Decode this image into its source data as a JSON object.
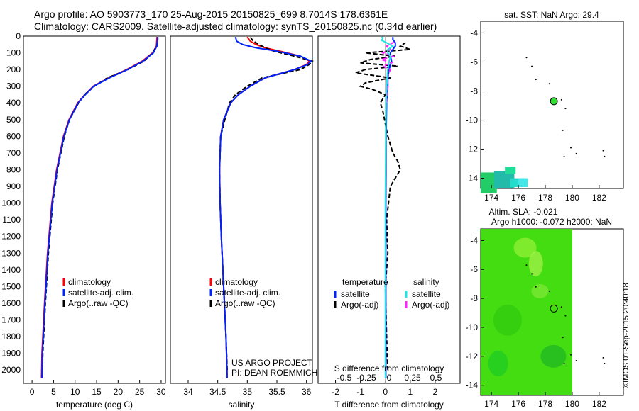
{
  "header": {
    "title_line1": "Argo profile: AO 5903773_170 25-Aug-2015 20150825_699 8.7014S 178.6361E",
    "title_line2": "Climatology: CARS2009. Satellite-adjusted climatology: synTS_20150825.nc (0.34d earlier)"
  },
  "credits": {
    "line1": "US ARGO PROJECT",
    "line2": "PI: DEAN ROEMMICH"
  },
  "stamp": "©IMOS 01-Sep-2015 20:40:18",
  "colors": {
    "climatology": "#ff0000",
    "satellite": "#0022ff",
    "argo": "#000000",
    "sal_sat": "#22e6e6",
    "sal_argo": "#ff22ff",
    "frame": "#000000"
  },
  "chart_data": [
    {
      "type": "line",
      "xlabel": "temperature (deg C)",
      "ylim": [
        2080,
        0
      ],
      "xlim": [
        -2,
        31
      ],
      "yticks": [
        0,
        100,
        200,
        300,
        400,
        500,
        600,
        700,
        800,
        900,
        1000,
        1100,
        1200,
        1300,
        1400,
        1500,
        1600,
        1700,
        1800,
        1900,
        2000
      ],
      "xticks": [
        0,
        5,
        10,
        15,
        20,
        25,
        30
      ],
      "legend": [
        "climatology",
        "satellite-adj. clim.",
        "Argo(..raw -QC)"
      ],
      "legend_position": "lower-center",
      "series": [
        {
          "name": "climatology",
          "depth": [
            2050,
            1900,
            1600,
            1300,
            1000,
            800,
            600,
            500,
            400,
            350,
            300,
            250,
            200,
            150,
            100,
            60,
            20,
            5
          ],
          "values": [
            2.2,
            2.3,
            2.9,
            3.6,
            4.6,
            5.7,
            7.3,
            8.6,
            10.6,
            12.3,
            14.2,
            17.8,
            22.0,
            25.6,
            28.0,
            28.9,
            29.0,
            29.0
          ]
        },
        {
          "name": "satellite-adj. clim.",
          "depth": [
            2050,
            1900,
            1600,
            1300,
            1000,
            800,
            600,
            500,
            400,
            350,
            300,
            250,
            200,
            150,
            100,
            60,
            20,
            5
          ],
          "values": [
            2.3,
            2.4,
            3.0,
            3.7,
            4.7,
            5.8,
            7.4,
            8.7,
            10.7,
            12.4,
            14.3,
            18.0,
            22.2,
            25.8,
            28.2,
            29.0,
            29.2,
            29.2
          ]
        },
        {
          "name": "Argo(..raw -QC)",
          "depth": [
            2000,
            1900,
            1600,
            1300,
            1000,
            800,
            600,
            500,
            400,
            350,
            300,
            250,
            200,
            150,
            100,
            60,
            20,
            5
          ],
          "values": [
            2.4,
            2.5,
            3.1,
            3.8,
            4.8,
            5.9,
            7.5,
            8.7,
            10.8,
            12.2,
            14.5,
            17.5,
            22.3,
            26.0,
            28.0,
            29.0,
            29.2,
            29.2
          ]
        }
      ]
    },
    {
      "type": "line",
      "xlabel": "salinity",
      "ylim": [
        2080,
        0
      ],
      "xlim": [
        33.7,
        36.1
      ],
      "xticks": [
        34,
        34.5,
        35,
        35.5,
        36
      ],
      "legend": [
        "climatology",
        "satellite-adj. clim.",
        "Argo(..raw -QC)"
      ],
      "legend_position": "lower-center",
      "series": [
        {
          "name": "climatology",
          "depth": [
            2050,
            1800,
            1500,
            1200,
            1000,
            800,
            600,
            500,
            400,
            350,
            300,
            250,
            200,
            170,
            150,
            120,
            90,
            70,
            50,
            30,
            5
          ],
          "values": [
            34.66,
            34.64,
            34.6,
            34.56,
            34.54,
            34.53,
            34.55,
            34.6,
            34.72,
            34.85,
            35.05,
            35.3,
            35.8,
            36.0,
            36.05,
            35.9,
            35.55,
            35.3,
            35.15,
            35.05,
            35.0
          ]
        },
        {
          "name": "satellite-adj. clim.",
          "depth": [
            2050,
            1800,
            1500,
            1200,
            1000,
            800,
            600,
            500,
            400,
            350,
            300,
            250,
            200,
            170,
            150,
            120,
            90,
            70,
            50,
            30,
            5
          ],
          "values": [
            34.66,
            34.64,
            34.6,
            34.56,
            34.54,
            34.53,
            34.55,
            34.6,
            34.72,
            34.85,
            35.05,
            35.3,
            35.8,
            36.02,
            36.08,
            35.9,
            35.5,
            35.15,
            34.92,
            34.82,
            34.8
          ]
        },
        {
          "name": "Argo(..raw -QC)",
          "depth": [
            2000,
            1800,
            1500,
            1200,
            1000,
            800,
            600,
            500,
            400,
            350,
            300,
            250,
            200,
            170,
            150,
            120,
            90,
            70,
            50,
            30,
            5
          ],
          "values": [
            34.66,
            34.64,
            34.6,
            34.56,
            34.54,
            34.53,
            34.55,
            34.62,
            34.7,
            34.8,
            35.0,
            35.25,
            35.9,
            36.05,
            36.1,
            35.8,
            35.45,
            35.3,
            35.2,
            35.1,
            35.05
          ]
        }
      ]
    },
    {
      "type": "line",
      "xlabel": "T difference from climatology",
      "top_xlabel": "S difference from climatology",
      "ylim": [
        2080,
        0
      ],
      "xlim": [
        -2.7,
        3.0
      ],
      "xticks": [
        -2,
        -1,
        0,
        1,
        2
      ],
      "top_xticks": [
        "-0.5",
        "-0.25",
        "0",
        "0.25",
        "0.5"
      ],
      "legend": [
        "temperature",
        "satellite",
        "Argo(-adj)",
        "salinity",
        "satellite",
        "Argo(-adj)"
      ],
      "legend_position": "lower-center",
      "series": [
        {
          "name": "satellite",
          "depth": [
            2050,
            1500,
            1000,
            600,
            400,
            300,
            250,
            200,
            150,
            120,
            100,
            80,
            60,
            40,
            20,
            5
          ],
          "values": [
            0.02,
            0.02,
            0.02,
            0.03,
            0.05,
            0.1,
            0.1,
            0.15,
            0.25,
            0.2,
            0.2,
            0.3,
            0.4,
            0.4,
            0.3,
            0.3
          ]
        },
        {
          "name": "Argo(-adj)",
          "depth": [
            2000,
            1800,
            1500,
            1300,
            1100,
            900,
            800,
            750,
            700,
            600,
            450,
            400,
            350,
            320,
            300,
            280,
            250,
            220,
            200,
            180,
            160,
            140,
            120,
            100,
            80,
            60,
            40
          ],
          "values": [
            0.1,
            0.05,
            0.0,
            0.1,
            0.05,
            0.2,
            0.6,
            0.5,
            0.3,
            0.1,
            -0.1,
            -0.2,
            0.0,
            -0.5,
            -1.0,
            -0.8,
            0.2,
            -1.2,
            -0.8,
            0.5,
            -1.0,
            -0.6,
            0.4,
            -0.8,
            1.0,
            0.6,
            0.8
          ]
        },
        {
          "name": "satellite",
          "depth": [
            2050,
            1500,
            1000,
            600,
            400,
            300,
            200,
            150,
            120,
            100,
            80,
            60,
            40,
            25,
            10,
            5
          ],
          "values": [
            0.0,
            0.0,
            0.0,
            0.02,
            0.03,
            0.05,
            0.1,
            0.15,
            0.2,
            0.1,
            0.1,
            0.3,
            0.05,
            -0.15,
            -0.1,
            -0.15
          ]
        },
        {
          "name": "Argo(-adj)",
          "depth": [
            400,
            350,
            300,
            250,
            200,
            180,
            160,
            140,
            120,
            100,
            80,
            60,
            40,
            25
          ],
          "values": [
            0.05,
            0.08,
            0.1,
            0.05,
            0.2,
            -0.1,
            0.25,
            -0.15,
            0.3,
            -0.1,
            0.2,
            0.05,
            0.3,
            0.4
          ]
        }
      ]
    },
    {
      "type": "scatter",
      "title": "sat. SST: NaN Argo: 29.4",
      "xlim": [
        173.2,
        183.8
      ],
      "ylim": [
        -14.7,
        -3.2
      ],
      "xticks": [
        174,
        176,
        178,
        180,
        182
      ],
      "yticks": [
        -4,
        -6,
        -8,
        -10,
        -12,
        -14
      ],
      "point": {
        "x": 178.6361,
        "y": -8.7014
      },
      "islands": [
        [
          176.6,
          -5.7
        ],
        [
          177.0,
          -6.3
        ],
        [
          177.3,
          -7.2
        ],
        [
          178.3,
          -7.5
        ],
        [
          179.2,
          -8.6
        ],
        [
          179.5,
          -9.2
        ],
        [
          179.3,
          -10.7
        ],
        [
          179.9,
          -11.9
        ],
        [
          180.3,
          -12.3
        ],
        [
          182.3,
          -12.1
        ],
        [
          182.4,
          -12.5
        ],
        [
          179.4,
          -12.5
        ]
      ]
    },
    {
      "type": "heatmap",
      "title_line1": "Altim. SLA: -0.021",
      "title_line2": "Argo h1000: -0.072 h2000: NaN",
      "xlim": [
        173.2,
        183.8
      ],
      "ylim": [
        -14.7,
        -3.2
      ],
      "xticks": [
        174,
        176,
        178,
        180,
        182
      ],
      "yticks": [
        -4,
        -6,
        -8,
        -10,
        -12,
        -14
      ],
      "data_extent_lon": [
        173.2,
        180.0
      ],
      "point": {
        "x": 178.6361,
        "y": -8.7014
      }
    }
  ]
}
